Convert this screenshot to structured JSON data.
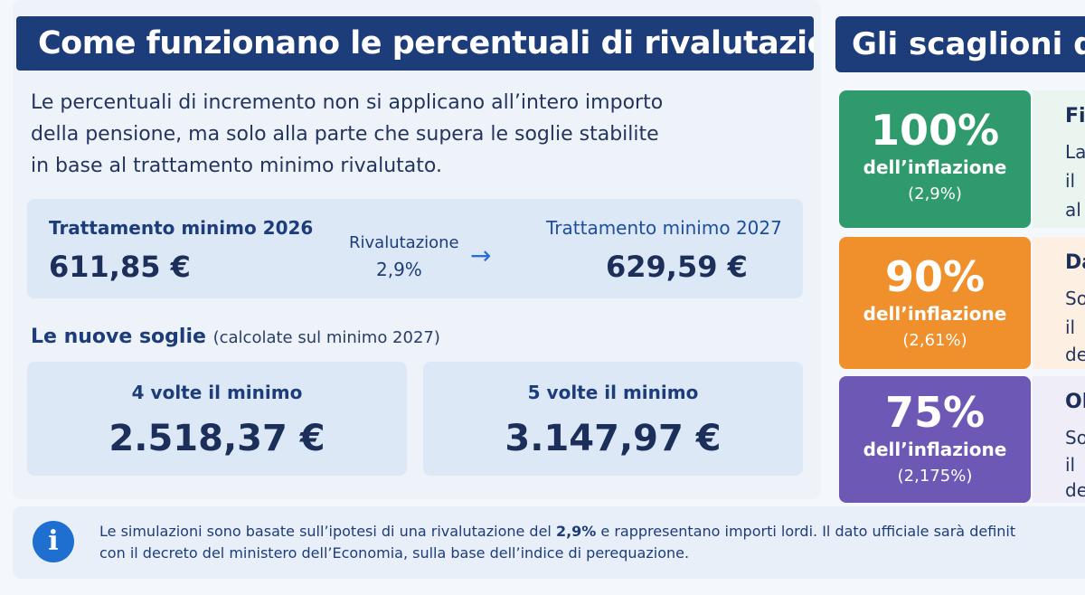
{
  "left": {
    "title": "Come funzionano le percentuali di rivalutazione",
    "intro_lines": [
      "Le percentuali di incremento non si applicano all’intero importo",
      "della pensione, ma solo alla parte che supera le soglie stabilite",
      "in base al trattamento minimo rivalutato."
    ],
    "min_2026": {
      "label": "Trattamento minimo 2026",
      "value": "611,85 €"
    },
    "rivalutazione": {
      "label": "Rivalutazione",
      "value": "2,9%"
    },
    "min_2027": {
      "label": "Trattamento minimo 2027",
      "value": "629,59 €"
    },
    "soglie": {
      "title": "Le nuove soglie",
      "note": "(calcolate sul minimo 2027)",
      "items": [
        {
          "label": "4 volte il minimo",
          "value": "2.518,37 €"
        },
        {
          "label": "5 volte il minimo",
          "value": "3.147,97 €"
        }
      ]
    }
  },
  "right": {
    "title": "Gli scaglioni di",
    "tiers": [
      {
        "pct": "100%",
        "desc": "dell’inflazione",
        "paren": "(2,9%)",
        "color": "#2f9a6b",
        "head": "Fi",
        "lines": [
          "La",
          "il",
          "al"
        ]
      },
      {
        "pct": "90%",
        "desc": "dell’inflazione",
        "paren": "(2,61%)",
        "color": "#f0902c",
        "head": "Da",
        "lines": [
          "So",
          "il",
          "de"
        ]
      },
      {
        "pct": "75%",
        "desc": "dell’inflazione",
        "paren": "(2,175%)",
        "color": "#6d58b6",
        "head": "Ol",
        "lines": [
          "So",
          "il",
          "de"
        ]
      }
    ]
  },
  "footer": {
    "icon": "info-icon",
    "line1_pre": "Le simulazioni sono basate sull’ipotesi di una rivalutazione del ",
    "line1_bold": "2,9%",
    "line1_post": " e rappresentano importi lordi. Il dato ufficiale sarà definit",
    "line2": "con il decreto del ministero dell’Economia, sulla base dell’indice di perequazione."
  }
}
